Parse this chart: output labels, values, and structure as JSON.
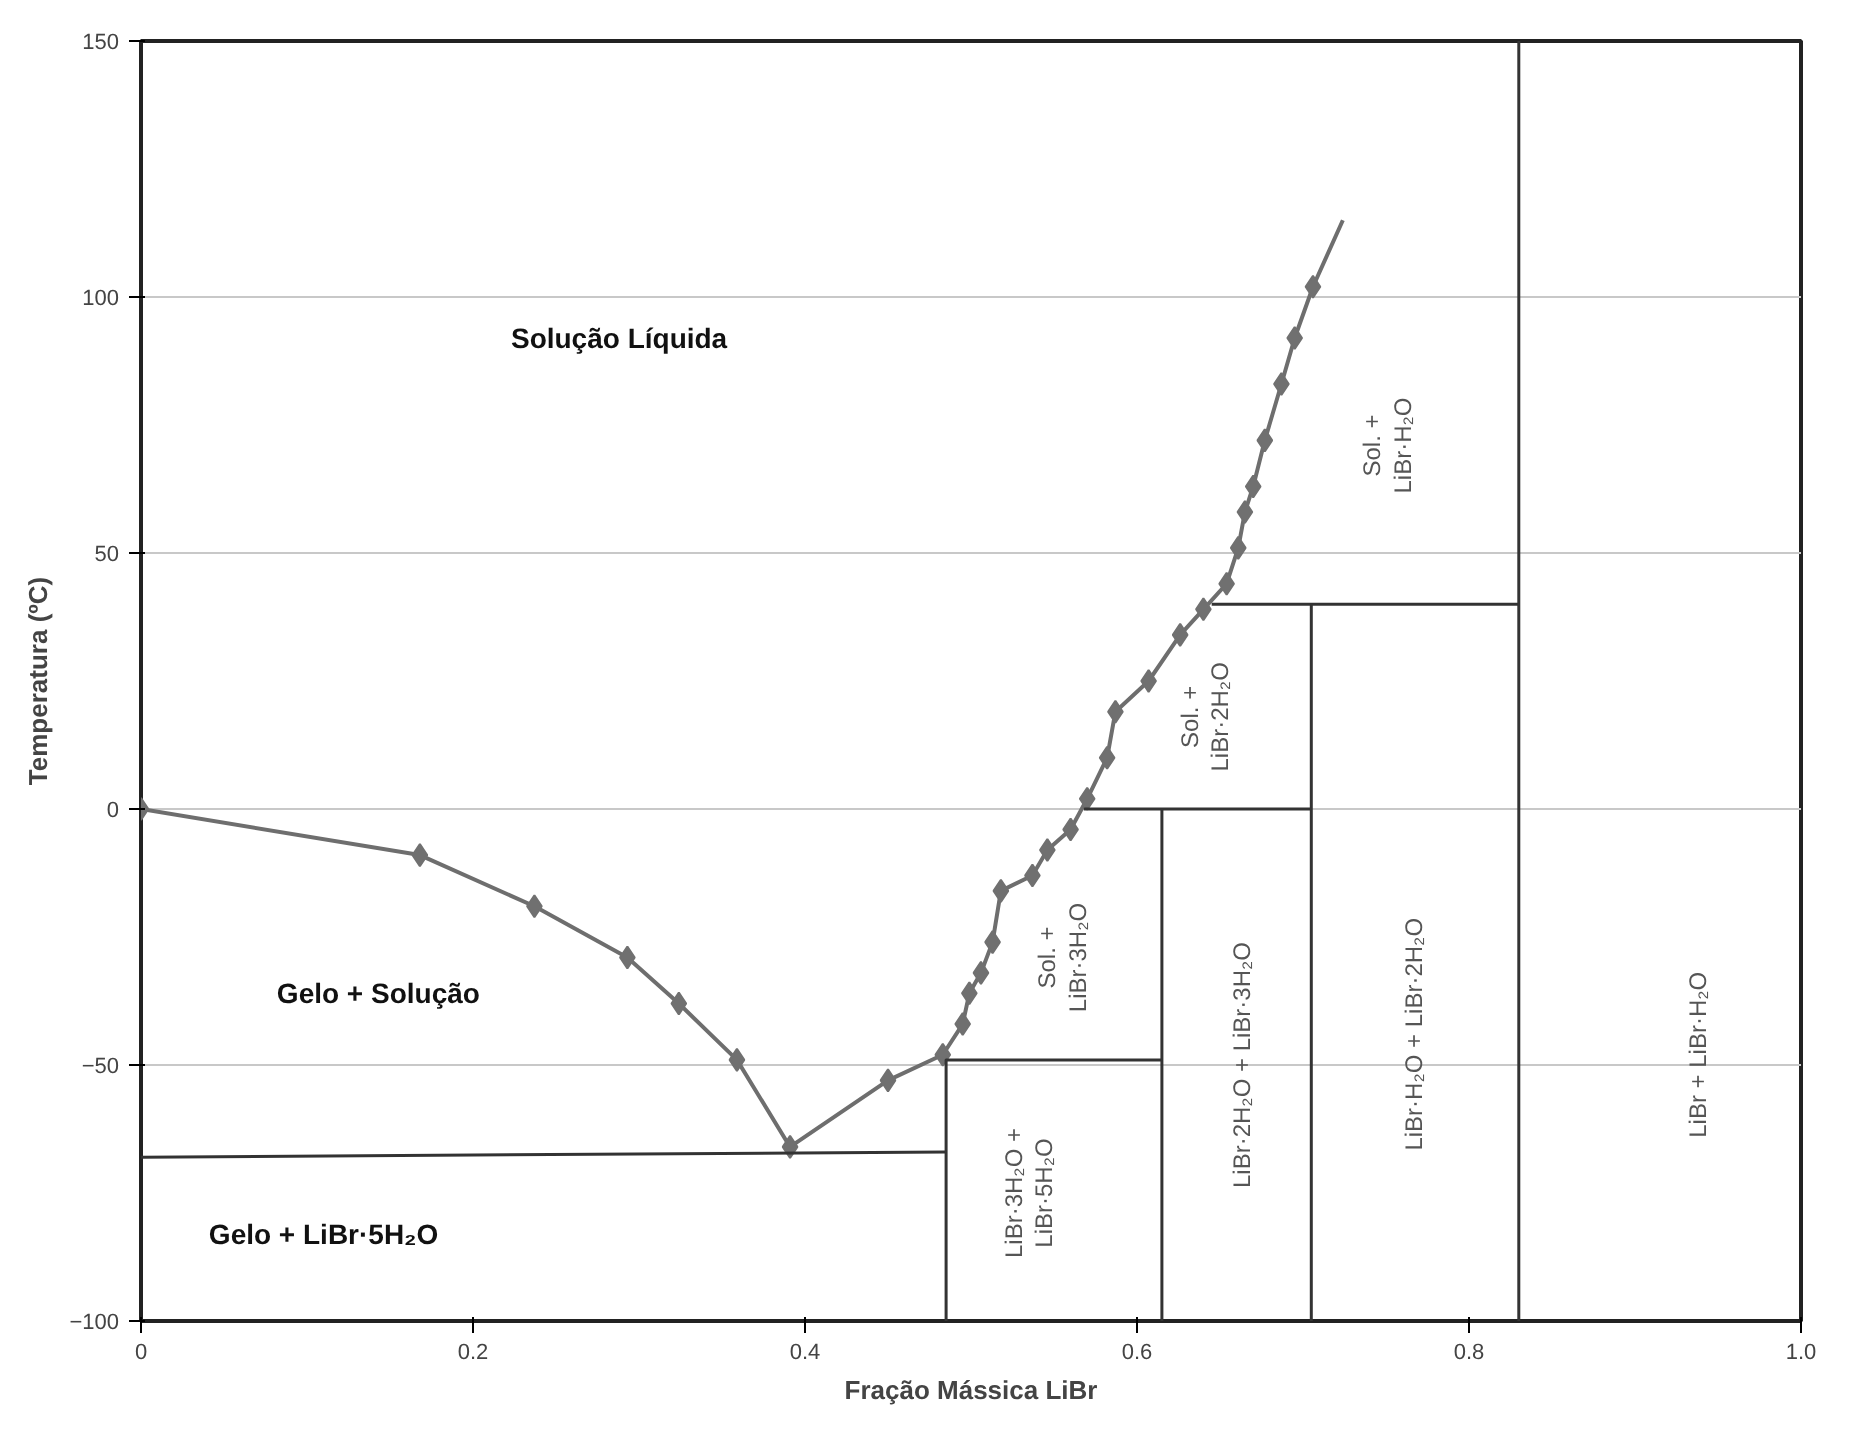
{
  "chart_data": {
    "type": "line",
    "xlabel": "Fração Mássica LiBr",
    "ylabel": "Temperatura (ºC)",
    "xlim": [
      0,
      1.0
    ],
    "ylim": [
      -100,
      150
    ],
    "xticks": [
      0,
      0.2,
      0.4,
      0.6,
      0.8,
      {
        "value": 1,
        "label": "1.0"
      }
    ],
    "yticks": [
      -100,
      -50,
      0,
      50,
      100,
      150
    ],
    "grid": "y",
    "series": [
      {
        "marker": "none",
        "color": "#6e6e6e",
        "x": [
          0,
          0.168,
          0.237,
          0.293,
          0.324,
          0.359,
          0.391,
          0.45,
          0.483,
          0.495,
          0.499,
          0.506,
          0.513,
          0.518,
          0.537,
          0.546,
          0.56,
          0.57,
          0.582,
          0.587,
          0.607,
          0.626,
          0.64,
          0.654,
          0.661,
          0.665,
          0.67,
          0.677,
          0.687,
          0.695,
          0.706,
          0.724
        ],
        "values": [
          0,
          -9,
          -19,
          -29,
          -38,
          -49,
          -66,
          -53,
          -48,
          -42,
          -36,
          -32,
          -26,
          -16,
          -13,
          -8,
          -4,
          2,
          10,
          19,
          25,
          34,
          39,
          44,
          51,
          58,
          63,
          72,
          83,
          92,
          102,
          115
        ]
      },
      {
        "type": "scatter",
        "marker": "diamond",
        "color": "#707070",
        "x": [
          0,
          0.168,
          0.237,
          0.293,
          0.324,
          0.359,
          0.391,
          0.45,
          0.483,
          0.495,
          0.499,
          0.506,
          0.513,
          0.518,
          0.537,
          0.546,
          0.56,
          0.57,
          0.582,
          0.587,
          0.607,
          0.626,
          0.64,
          0.654,
          0.661,
          0.665,
          0.67,
          0.677,
          0.687,
          0.695,
          0.706
        ],
        "values": [
          0,
          -9,
          -19,
          -29,
          -38,
          -49,
          -66,
          -53,
          -48,
          -42,
          -36,
          -32,
          -26,
          -16,
          -13,
          -8,
          -4,
          2,
          10,
          19,
          25,
          34,
          39,
          44,
          51,
          58,
          63,
          72,
          83,
          92,
          102
        ]
      },
      {
        "type": "line",
        "marker": "none",
        "color": "#333333",
        "x": [
          0,
          0.485
        ],
        "values": [
          -68,
          -67
        ]
      },
      {
        "type": "line",
        "marker": "none",
        "color": "#333333",
        "x": [
          0.485,
          0.485,
          0.615
        ],
        "values": [
          -100,
          -49,
          -49
        ]
      },
      {
        "type": "line",
        "marker": "none",
        "color": "#333333",
        "x": [
          0.568,
          0.705
        ],
        "values": [
          0,
          0
        ]
      },
      {
        "type": "line",
        "marker": "none",
        "color": "#333333",
        "x": [
          0.615,
          0.615
        ],
        "values": [
          -100,
          0
        ]
      },
      {
        "type": "line",
        "marker": "none",
        "color": "#333333",
        "x": [
          0.705,
          0.705
        ],
        "values": [
          -100,
          40
        ]
      },
      {
        "type": "line",
        "marker": "none",
        "color": "#333333",
        "x": [
          0.645,
          0.83
        ],
        "values": [
          40,
          40
        ]
      },
      {
        "type": "line",
        "marker": "none",
        "color": "#333333",
        "x": [
          0.83,
          0.83
        ],
        "values": [
          -100,
          150
        ]
      }
    ],
    "annotations": [
      "Solução Líquida",
      "Gelo + Solução",
      "Gelo + LiBr·5H₂O",
      "LiBr·3H₂O +\nLiBr·5H₂O",
      "Sol. +\nLiBr·3H₂O",
      "LiBr·2H₂O + LiBr·3H₂O",
      "Sol. +\nLiBr·2H₂O",
      "LiBr·H₂O + LiBr·2H₂O",
      "LiBr + LiBr·H₂O",
      "Sol. +\nLiBr·H₂O"
    ]
  }
}
